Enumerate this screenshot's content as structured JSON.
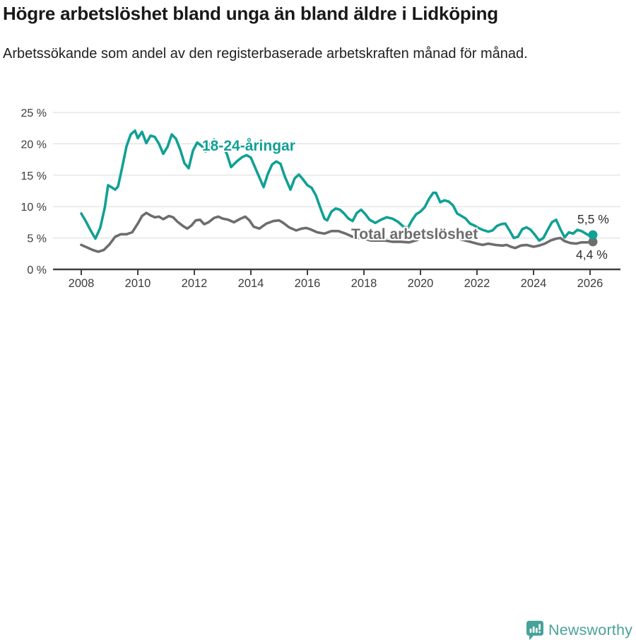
{
  "chart_data": {
    "type": "line",
    "title": "Högre arbetslöshet bland unga än bland äldre i Lidköping",
    "subtitle": "Arbetssökande som andel av den registerbaserade arbetskraften månad för månad.",
    "xlabel": "",
    "ylabel": "",
    "xlim": [
      2007.0,
      2026.6
    ],
    "ylim": [
      0,
      25
    ],
    "grid": "horizontal",
    "legend": "inline-labels",
    "x_ticks": [
      2008,
      2010,
      2012,
      2014,
      2016,
      2018,
      2020,
      2022,
      2024,
      2026
    ],
    "x_tick_labels": [
      "2008",
      "2010",
      "2012",
      "2014",
      "2016",
      "2018",
      "2020",
      "2022",
      "2024",
      "2026"
    ],
    "y_ticks": [
      0,
      5,
      10,
      15,
      20,
      25
    ],
    "y_tick_labels": [
      "0 %",
      "5 %",
      "10 %",
      "15 %",
      "20 %",
      "25 %"
    ],
    "series": [
      {
        "name": "Total arbetslöshet",
        "color": "#6d6d6d",
        "end_label": "4,4 %",
        "points": [
          [
            2008.0,
            3.9
          ],
          [
            2008.2,
            3.5
          ],
          [
            2008.4,
            3.1
          ],
          [
            2008.6,
            2.8
          ],
          [
            2008.8,
            3.1
          ],
          [
            2009.0,
            4.0
          ],
          [
            2009.2,
            5.2
          ],
          [
            2009.4,
            5.6
          ],
          [
            2009.6,
            5.6
          ],
          [
            2009.8,
            5.9
          ],
          [
            2010.0,
            7.3
          ],
          [
            2010.15,
            8.5
          ],
          [
            2010.3,
            9.0
          ],
          [
            2010.45,
            8.6
          ],
          [
            2010.6,
            8.3
          ],
          [
            2010.75,
            8.4
          ],
          [
            2010.9,
            8.0
          ],
          [
            2011.1,
            8.5
          ],
          [
            2011.25,
            8.3
          ],
          [
            2011.4,
            7.6
          ],
          [
            2011.6,
            6.9
          ],
          [
            2011.75,
            6.5
          ],
          [
            2011.9,
            7.0
          ],
          [
            2012.05,
            7.8
          ],
          [
            2012.2,
            7.9
          ],
          [
            2012.35,
            7.2
          ],
          [
            2012.5,
            7.5
          ],
          [
            2012.7,
            8.2
          ],
          [
            2012.85,
            8.4
          ],
          [
            2013.0,
            8.1
          ],
          [
            2013.2,
            7.9
          ],
          [
            2013.4,
            7.5
          ],
          [
            2013.6,
            8.0
          ],
          [
            2013.8,
            8.4
          ],
          [
            2013.95,
            7.8
          ],
          [
            2014.1,
            6.8
          ],
          [
            2014.3,
            6.5
          ],
          [
            2014.55,
            7.3
          ],
          [
            2014.8,
            7.7
          ],
          [
            2015.0,
            7.8
          ],
          [
            2015.15,
            7.4
          ],
          [
            2015.35,
            6.7
          ],
          [
            2015.6,
            6.2
          ],
          [
            2015.8,
            6.5
          ],
          [
            2015.95,
            6.6
          ],
          [
            2016.1,
            6.4
          ],
          [
            2016.35,
            5.9
          ],
          [
            2016.6,
            5.7
          ],
          [
            2016.85,
            6.1
          ],
          [
            2017.1,
            6.1
          ],
          [
            2017.35,
            5.7
          ],
          [
            2017.6,
            5.2
          ],
          [
            2017.8,
            5.0
          ],
          [
            2018.0,
            4.9
          ],
          [
            2018.25,
            4.6
          ],
          [
            2018.5,
            4.6
          ],
          [
            2018.75,
            4.6
          ],
          [
            2019.0,
            4.4
          ],
          [
            2019.3,
            4.4
          ],
          [
            2019.6,
            4.3
          ],
          [
            2019.9,
            4.7
          ],
          [
            2020.1,
            5.3
          ],
          [
            2020.35,
            5.9
          ],
          [
            2020.5,
            6.0
          ],
          [
            2020.7,
            5.7
          ],
          [
            2020.95,
            5.5
          ],
          [
            2021.2,
            5.0
          ],
          [
            2021.5,
            4.7
          ],
          [
            2021.75,
            4.4
          ],
          [
            2022.0,
            4.1
          ],
          [
            2022.2,
            3.9
          ],
          [
            2022.4,
            4.1
          ],
          [
            2022.65,
            3.9
          ],
          [
            2022.9,
            3.8
          ],
          [
            2023.05,
            3.9
          ],
          [
            2023.2,
            3.6
          ],
          [
            2023.35,
            3.4
          ],
          [
            2023.55,
            3.8
          ],
          [
            2023.75,
            3.9
          ],
          [
            2024.0,
            3.6
          ],
          [
            2024.2,
            3.8
          ],
          [
            2024.4,
            4.1
          ],
          [
            2024.6,
            4.6
          ],
          [
            2024.8,
            4.9
          ],
          [
            2024.95,
            5.0
          ],
          [
            2025.1,
            4.5
          ],
          [
            2025.3,
            4.2
          ],
          [
            2025.5,
            4.1
          ],
          [
            2025.7,
            4.3
          ],
          [
            2025.9,
            4.3
          ],
          [
            2026.1,
            4.4
          ]
        ]
      },
      {
        "name": "18-24-åringar",
        "color": "#11a095",
        "end_label": "5,5 %",
        "points": [
          [
            2008.0,
            8.9
          ],
          [
            2008.17,
            7.6
          ],
          [
            2008.33,
            6.2
          ],
          [
            2008.5,
            4.9
          ],
          [
            2008.67,
            6.6
          ],
          [
            2008.83,
            9.8
          ],
          [
            2008.95,
            13.4
          ],
          [
            2009.1,
            13.0
          ],
          [
            2009.2,
            12.7
          ],
          [
            2009.3,
            13.2
          ],
          [
            2009.45,
            16.3
          ],
          [
            2009.6,
            19.6
          ],
          [
            2009.75,
            21.5
          ],
          [
            2009.9,
            22.1
          ],
          [
            2010.0,
            20.9
          ],
          [
            2010.15,
            21.9
          ],
          [
            2010.3,
            20.1
          ],
          [
            2010.45,
            21.3
          ],
          [
            2010.6,
            21.1
          ],
          [
            2010.75,
            20.0
          ],
          [
            2010.9,
            18.4
          ],
          [
            2011.05,
            19.5
          ],
          [
            2011.2,
            21.5
          ],
          [
            2011.35,
            20.8
          ],
          [
            2011.5,
            19.1
          ],
          [
            2011.65,
            16.9
          ],
          [
            2011.8,
            16.1
          ],
          [
            2011.95,
            18.9
          ],
          [
            2012.1,
            20.2
          ],
          [
            2012.25,
            19.7
          ],
          [
            2012.4,
            18.8
          ],
          [
            2012.55,
            19.9
          ],
          [
            2012.7,
            20.7
          ],
          [
            2012.85,
            19.3
          ],
          [
            2013.0,
            19.6
          ],
          [
            2013.15,
            18.4
          ],
          [
            2013.3,
            16.3
          ],
          [
            2013.5,
            17.2
          ],
          [
            2013.7,
            17.9
          ],
          [
            2013.85,
            18.2
          ],
          [
            2014.0,
            17.8
          ],
          [
            2014.2,
            15.7
          ],
          [
            2014.45,
            13.1
          ],
          [
            2014.6,
            15.2
          ],
          [
            2014.75,
            16.7
          ],
          [
            2014.9,
            17.2
          ],
          [
            2015.05,
            16.8
          ],
          [
            2015.2,
            14.8
          ],
          [
            2015.4,
            12.7
          ],
          [
            2015.55,
            14.5
          ],
          [
            2015.7,
            15.1
          ],
          [
            2015.85,
            14.3
          ],
          [
            2016.0,
            13.4
          ],
          [
            2016.15,
            13.0
          ],
          [
            2016.3,
            11.8
          ],
          [
            2016.45,
            9.9
          ],
          [
            2016.6,
            8.1
          ],
          [
            2016.7,
            7.8
          ],
          [
            2016.85,
            9.2
          ],
          [
            2017.0,
            9.7
          ],
          [
            2017.15,
            9.5
          ],
          [
            2017.3,
            8.9
          ],
          [
            2017.45,
            8.1
          ],
          [
            2017.6,
            7.7
          ],
          [
            2017.75,
            9.0
          ],
          [
            2017.9,
            9.5
          ],
          [
            2018.05,
            8.8
          ],
          [
            2018.2,
            7.9
          ],
          [
            2018.4,
            7.4
          ],
          [
            2018.6,
            7.9
          ],
          [
            2018.8,
            8.3
          ],
          [
            2019.0,
            8.1
          ],
          [
            2019.2,
            7.6
          ],
          [
            2019.4,
            6.8
          ],
          [
            2019.55,
            6.6
          ],
          [
            2019.7,
            7.8
          ],
          [
            2019.85,
            8.8
          ],
          [
            2020.0,
            9.2
          ],
          [
            2020.15,
            9.9
          ],
          [
            2020.3,
            11.2
          ],
          [
            2020.45,
            12.2
          ],
          [
            2020.55,
            12.2
          ],
          [
            2020.7,
            10.7
          ],
          [
            2020.85,
            11.0
          ],
          [
            2021.0,
            10.8
          ],
          [
            2021.15,
            10.2
          ],
          [
            2021.3,
            8.9
          ],
          [
            2021.45,
            8.5
          ],
          [
            2021.6,
            8.1
          ],
          [
            2021.75,
            7.3
          ],
          [
            2021.9,
            7.0
          ],
          [
            2022.05,
            6.6
          ],
          [
            2022.2,
            6.3
          ],
          [
            2022.4,
            6.0
          ],
          [
            2022.55,
            6.2
          ],
          [
            2022.7,
            6.9
          ],
          [
            2022.85,
            7.2
          ],
          [
            2023.0,
            7.3
          ],
          [
            2023.15,
            6.2
          ],
          [
            2023.3,
            5.0
          ],
          [
            2023.45,
            5.2
          ],
          [
            2023.6,
            6.4
          ],
          [
            2023.75,
            6.7
          ],
          [
            2023.9,
            6.3
          ],
          [
            2024.05,
            5.5
          ],
          [
            2024.2,
            4.6
          ],
          [
            2024.35,
            5.0
          ],
          [
            2024.5,
            6.3
          ],
          [
            2024.65,
            7.5
          ],
          [
            2024.8,
            7.9
          ],
          [
            2024.95,
            6.4
          ],
          [
            2025.1,
            5.1
          ],
          [
            2025.25,
            5.9
          ],
          [
            2025.4,
            5.7
          ],
          [
            2025.55,
            6.3
          ],
          [
            2025.7,
            6.1
          ],
          [
            2025.85,
            5.7
          ],
          [
            2026.0,
            5.3
          ],
          [
            2026.1,
            5.5
          ]
        ]
      }
    ]
  },
  "footer": {
    "brand": "Newsworthy",
    "logo_icon": "newsworthy-bubble-chart-icon",
    "brand_color": "#4aa29a"
  }
}
